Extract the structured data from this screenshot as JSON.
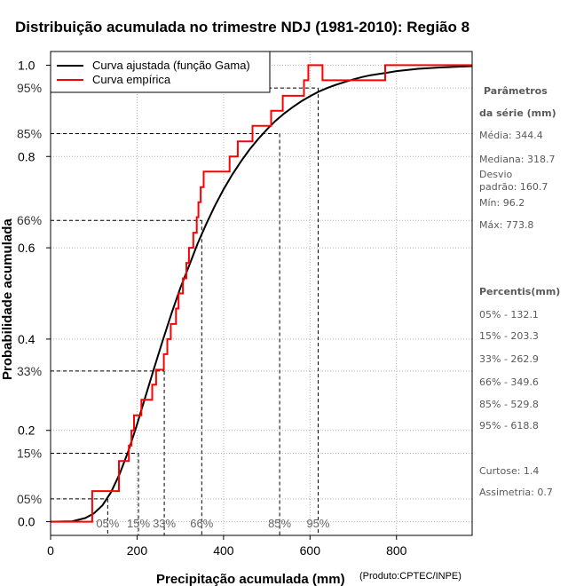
{
  "chart_data": {
    "type": "line",
    "title": "Distribuição acumulada no trimestre NDJ (1981-2010): Região 8",
    "xlabel": "Precipitação acumulada (mm)",
    "ylabel": "Probabilidade acumulada",
    "credit": "(Produto:CPTEC/INPE)",
    "xlim": [
      0,
      975
    ],
    "ylim": [
      -0.03,
      1.03
    ],
    "x_ticks": [
      0,
      200,
      400,
      600,
      800
    ],
    "x_tick_labels": [
      "0",
      "200",
      "400",
      "600",
      "800"
    ],
    "y_ticks": [
      0.0,
      0.2,
      0.4,
      0.6,
      0.8,
      1.0
    ],
    "y_tick_labels": [
      "0.0",
      "0.2",
      "0.4",
      "0.6",
      "0.8",
      "1.0"
    ],
    "y_percent_ticks": [
      0.05,
      0.15,
      0.33,
      0.66,
      0.85,
      0.95
    ],
    "y_percent_labels": [
      "05%",
      "15%",
      "33%",
      "66%",
      "85%",
      "95%"
    ],
    "x_percent_labels": [
      "05%",
      "15%",
      "33%",
      "66%",
      "85%",
      "95%"
    ],
    "legend": {
      "position": "top-left",
      "entries": [
        "Curva ajustada (função Gama)",
        "Curva empírica"
      ]
    },
    "percentile_values": [
      132.1,
      203.3,
      262.9,
      349.6,
      529.8,
      618.8
    ],
    "series": [
      {
        "name": "Curva ajustada (função Gama)",
        "color": "#000000",
        "x": [
          0,
          50,
          80,
          100,
          120,
          140,
          160,
          180,
          200,
          220,
          240,
          260,
          280,
          300,
          320,
          340,
          360,
          380,
          400,
          420,
          440,
          460,
          480,
          500,
          520,
          540,
          560,
          580,
          600,
          620,
          640,
          660,
          680,
          700,
          720,
          740,
          760,
          780,
          800,
          850,
          900,
          950,
          975
        ],
        "y": [
          0,
          0.001,
          0.008,
          0.018,
          0.036,
          0.065,
          0.105,
          0.155,
          0.213,
          0.276,
          0.338,
          0.399,
          0.457,
          0.512,
          0.56,
          0.609,
          0.652,
          0.692,
          0.728,
          0.76,
          0.789,
          0.815,
          0.838,
          0.859,
          0.878,
          0.894,
          0.908,
          0.921,
          0.932,
          0.942,
          0.95,
          0.957,
          0.963,
          0.969,
          0.974,
          0.978,
          0.981,
          0.984,
          0.987,
          0.992,
          0.995,
          0.997,
          0.998
        ]
      },
      {
        "name": "Curva empírica",
        "color": "#ff0000",
        "step_x": [
          96.2,
          158,
          181,
          187,
          193,
          210,
          235,
          244,
          262,
          270,
          278,
          290,
          296,
          306,
          314,
          320,
          330,
          338,
          342,
          347,
          354,
          414,
          433,
          467,
          510,
          537,
          586,
          596,
          629,
          773.8
        ],
        "step_y": [
          0.067,
          0.133,
          0.167,
          0.2,
          0.233,
          0.267,
          0.3,
          0.333,
          0.367,
          0.4,
          0.433,
          0.467,
          0.5,
          0.533,
          0.567,
          0.6,
          0.633,
          0.667,
          0.7,
          0.733,
          0.767,
          0.8,
          0.833,
          0.867,
          0.9,
          0.933,
          0.967,
          1.0,
          0.967,
          1.0
        ],
        "step_start": 0,
        "step_end": 975
      }
    ],
    "reference_lines": [
      {
        "label": "05%",
        "y": 0.05,
        "x": 132.1
      },
      {
        "label": "15%",
        "y": 0.15,
        "x": 203.3
      },
      {
        "label": "33%",
        "y": 0.33,
        "x": 262.9
      },
      {
        "label": "66%",
        "y": 0.66,
        "x": 349.6
      },
      {
        "label": "85%",
        "y": 0.85,
        "x": 529.8
      },
      {
        "label": "95%",
        "y": 0.95,
        "x": 618.8
      }
    ]
  },
  "side_panel": {
    "parametros_title_1": "Parâmetros",
    "parametros_title_2": "da série (mm)",
    "media": "Média: 344.4",
    "mediana": "Mediana: 318.7",
    "desvio_1": "Desvio",
    "desvio_2": "padrão: 160.7",
    "min": "Mín: 96.2",
    "max": "Máx: 773.8",
    "percentis_title": "Percentis(mm)",
    "p05": "05% - 132.1",
    "p15": "15% - 203.3",
    "p33": "33% - 262.9",
    "p66": "66% - 349.6",
    "p85": "85% - 529.8",
    "p95": "95% - 618.8",
    "curtose": "Curtose: 1.4",
    "assimetria": "Assimetria: 0.7"
  }
}
